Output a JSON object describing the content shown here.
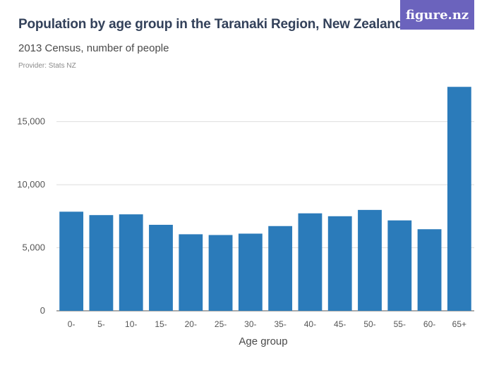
{
  "header": {
    "title": "Population by age group in the Taranaki Region, New Zealand",
    "subtitle": "2013 Census, number of people",
    "provider": "Provider: Stats NZ",
    "logo_text": "figure.nz"
  },
  "chart_data": {
    "type": "bar",
    "title": "Population by age group in the Taranaki Region, New Zealand",
    "subtitle": "2013 Census, number of people",
    "xlabel": "Age group",
    "ylabel": "",
    "categories": [
      "0-",
      "5-",
      "10-",
      "15-",
      "20-",
      "25-",
      "30-",
      "35-",
      "40-",
      "45-",
      "50-",
      "55-",
      "60-",
      "65+"
    ],
    "values": [
      7860,
      7590,
      7650,
      6820,
      6070,
      6010,
      6120,
      6720,
      7730,
      7500,
      8000,
      7170,
      6470,
      17760
    ],
    "ylim": [
      0,
      18500
    ],
    "yticks": [
      0,
      5000,
      10000,
      15000
    ],
    "ytick_labels": [
      "0",
      "5,000",
      "10,000",
      "15,000"
    ],
    "grid": true,
    "colors": {
      "bar": "#2b7bba",
      "logo_bg": "#6b63bd"
    }
  }
}
